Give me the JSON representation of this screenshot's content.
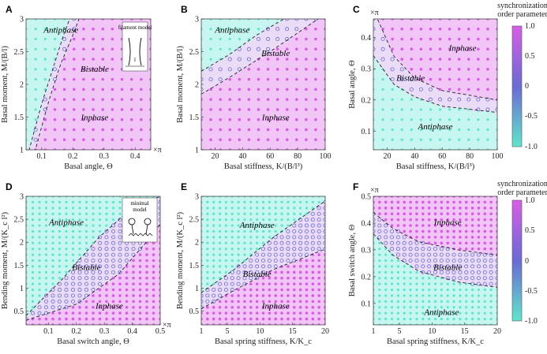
{
  "colors": {
    "inphase": "#d95ce8",
    "antiphase": "#5ee6cc",
    "mid": "#6a6ad6",
    "bg_in": "#f1c6f7",
    "bg_anti": "#c6f6ef",
    "bg_bi": "#eadcf7"
  },
  "colorbar": {
    "title_line1": "synchronization",
    "title_line2": "order parameter",
    "ticks": [
      "1.0",
      "0.5",
      "0",
      "-0.5",
      "-1.0"
    ]
  },
  "chart_data": [
    {
      "panel": "A",
      "type": "scatter",
      "xlabel": "Basal angle, Θ",
      "ylabel": "Basal moment, M/(B/l)",
      "xlim": [
        0.05,
        0.45
      ],
      "ylim": [
        1,
        3
      ],
      "xticks": [
        "0.1",
        "0.2",
        "0.3",
        "0.4"
      ],
      "xticks_v": [
        0.1,
        0.2,
        0.3,
        0.4
      ],
      "yticks": [
        "1",
        "1.5",
        "2",
        "2.5",
        "3"
      ],
      "yticks_v": [
        1,
        1.5,
        2,
        2.5,
        3
      ],
      "xunit": "×π",
      "regions": {
        "antiphase": "Antiphase",
        "bistable": "Bistable",
        "inphase": "Inphase"
      },
      "inset": "filament model",
      "inset_len": "l",
      "boundary_upper": [
        [
          0.06,
          1.0
        ],
        [
          0.1,
          1.7
        ],
        [
          0.14,
          2.3
        ],
        [
          0.17,
          2.75
        ],
        [
          0.19,
          3.0
        ]
      ],
      "boundary_lower": [
        [
          0.08,
          1.0
        ],
        [
          0.12,
          1.7
        ],
        [
          0.16,
          2.3
        ],
        [
          0.2,
          2.75
        ],
        [
          0.22,
          3.0
        ]
      ]
    },
    {
      "panel": "B",
      "type": "scatter",
      "xlabel": "Basal stiffness, K/(B/l³)",
      "ylabel": "Basal moment, M/(B/l)",
      "xlim": [
        10,
        100
      ],
      "ylim": [
        1,
        3
      ],
      "xticks": [
        "20",
        "40",
        "60",
        "80",
        "100"
      ],
      "xticks_v": [
        20,
        40,
        60,
        80,
        100
      ],
      "yticks": [
        "1",
        "1.5",
        "2",
        "2.5",
        "3"
      ],
      "yticks_v": [
        1,
        1.5,
        2,
        2.5,
        3
      ],
      "regions": {
        "antiphase": "Antiphase",
        "bistable": "Bistable",
        "inphase": "Inphase"
      },
      "boundary_upper": [
        [
          10,
          2.2
        ],
        [
          30,
          2.45
        ],
        [
          50,
          2.75
        ],
        [
          70,
          3.0
        ]
      ],
      "boundary_lower": [
        [
          10,
          1.85
        ],
        [
          30,
          2.1
        ],
        [
          60,
          2.5
        ],
        [
          95,
          3.0
        ]
      ]
    },
    {
      "panel": "C",
      "type": "scatter",
      "xlabel": "Basal stiffness, K/(B/l³)",
      "ylabel": "Basal angle, Θ",
      "xlim": [
        10,
        100
      ],
      "ylim": [
        0.04,
        0.46
      ],
      "xticks": [
        "20",
        "40",
        "60",
        "80",
        "100"
      ],
      "xticks_v": [
        20,
        40,
        60,
        80,
        100
      ],
      "yticks": [
        "0.1",
        "0.2",
        "0.3",
        "0.4"
      ],
      "yticks_v": [
        0.1,
        0.2,
        0.3,
        0.4
      ],
      "yunit": "×π",
      "regions": {
        "antiphase": "Antiphase",
        "bistable": "Bistable",
        "inphase": "Inphase"
      },
      "boundary_upper": [
        [
          15,
          0.44
        ],
        [
          25,
          0.34
        ],
        [
          40,
          0.27
        ],
        [
          60,
          0.23
        ],
        [
          100,
          0.2
        ]
      ],
      "boundary_lower": [
        [
          12,
          0.33
        ],
        [
          25,
          0.25
        ],
        [
          40,
          0.21
        ],
        [
          60,
          0.18
        ],
        [
          100,
          0.16
        ]
      ]
    },
    {
      "panel": "D",
      "type": "scatter",
      "xlabel": "Basal switch angle, Θ",
      "ylabel": "Bending moment, M/(K_c l²)",
      "xlim": [
        0.02,
        0.5
      ],
      "ylim": [
        0.2,
        3
      ],
      "xticks": [
        "0.1",
        "0.2",
        "0.3",
        "0.4",
        "0.5"
      ],
      "xticks_v": [
        0.1,
        0.2,
        0.3,
        0.4,
        0.5
      ],
      "yticks": [
        "0.5",
        "1",
        "1.5",
        "2",
        "2.5",
        "3"
      ],
      "yticks_v": [
        0.5,
        1,
        1.5,
        2,
        2.5,
        3
      ],
      "xunit": "×π",
      "regions": {
        "antiphase": "Antiphase",
        "bistable": "Bistable",
        "inphase": "Inphase"
      },
      "inset": "minimal model",
      "boundary_upper": [
        [
          0.02,
          0.4
        ],
        [
          0.15,
          1.2
        ],
        [
          0.28,
          2.1
        ],
        [
          0.4,
          2.75
        ],
        [
          0.5,
          3.0
        ]
      ],
      "boundary_lower": [
        [
          0.02,
          0.3
        ],
        [
          0.2,
          0.65
        ],
        [
          0.35,
          1.3
        ],
        [
          0.45,
          2.0
        ],
        [
          0.5,
          2.4
        ]
      ]
    },
    {
      "panel": "E",
      "type": "scatter",
      "xlabel": "Basal spring stiffness, K/K_c",
      "ylabel": "Bending moment, M/(K_c l²)",
      "xlim": [
        1,
        20
      ],
      "ylim": [
        0.2,
        3
      ],
      "xticks": [
        "1",
        "5",
        "10",
        "15",
        "20"
      ],
      "xticks_v": [
        1,
        5,
        10,
        15,
        20
      ],
      "yticks": [
        "0.5",
        "1",
        "1.5",
        "2",
        "2.5",
        "3"
      ],
      "yticks_v": [
        0.5,
        1,
        1.5,
        2,
        2.5,
        3
      ],
      "regions": {
        "antiphase": "Antiphase",
        "bistable": "Bistable",
        "inphase": "Inphase"
      },
      "boundary_upper": [
        [
          1,
          0.9
        ],
        [
          6,
          1.4
        ],
        [
          12,
          2.1
        ],
        [
          20,
          2.9
        ]
      ],
      "boundary_lower": [
        [
          1,
          0.55
        ],
        [
          6,
          0.95
        ],
        [
          12,
          1.4
        ],
        [
          20,
          1.85
        ]
      ]
    },
    {
      "panel": "F",
      "type": "scatter",
      "xlabel": "Basal spring stiffness, K/K_c",
      "ylabel": "Basal switch angle, Θ",
      "xlim": [
        1,
        20
      ],
      "ylim": [
        0.02,
        0.5
      ],
      "xticks": [
        "1",
        "5",
        "10",
        "15",
        "20"
      ],
      "xticks_v": [
        1,
        5,
        10,
        15,
        20
      ],
      "yticks": [
        "0.1",
        "0.2",
        "0.3",
        "0.4",
        "0.5"
      ],
      "yticks_v": [
        0.1,
        0.2,
        0.3,
        0.4,
        0.5
      ],
      "yunit": "×π",
      "regions": {
        "antiphase": "Antiphase",
        "bistable": "Bistable",
        "inphase": "Inphase"
      },
      "boundary_upper": [
        [
          1,
          0.44
        ],
        [
          4,
          0.38
        ],
        [
          8,
          0.33
        ],
        [
          14,
          0.3
        ],
        [
          20,
          0.28
        ]
      ],
      "boundary_lower": [
        [
          1,
          0.36
        ],
        [
          4,
          0.28
        ],
        [
          8,
          0.22
        ],
        [
          14,
          0.18
        ],
        [
          20,
          0.16
        ]
      ]
    }
  ]
}
